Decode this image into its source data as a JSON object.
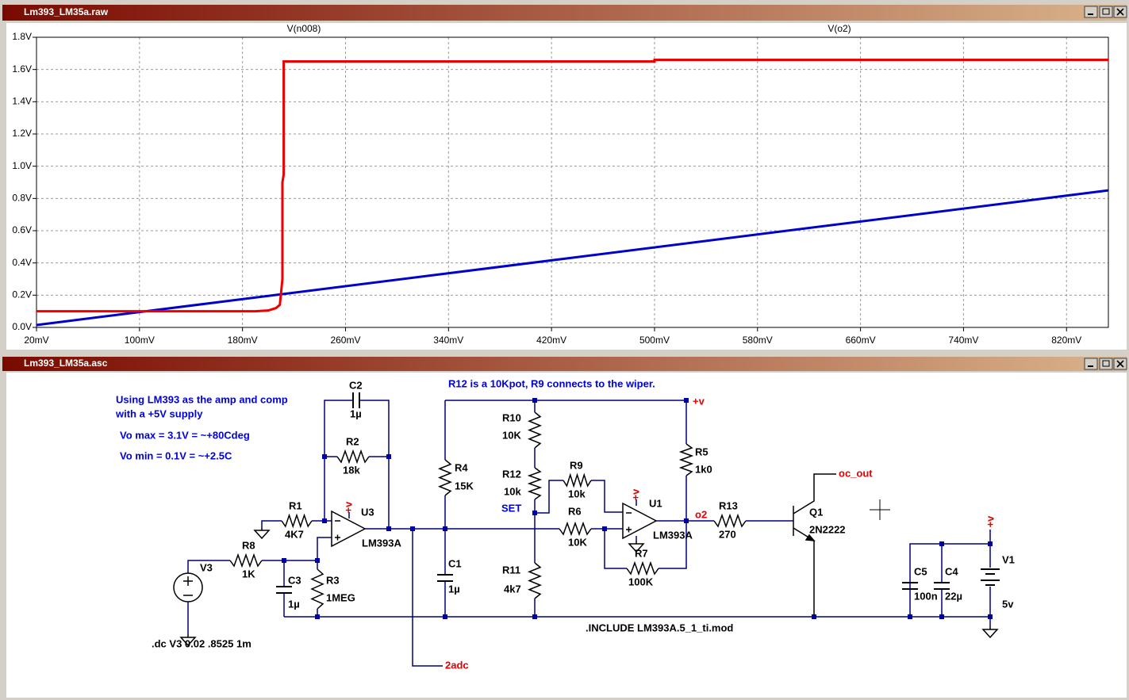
{
  "plot_window": {
    "title": "Lm393_LM35a.raw"
  },
  "chart_data": {
    "type": "line",
    "xlim": [
      20,
      852.5
    ],
    "ylim": [
      0,
      1.8
    ],
    "xticks": [
      {
        "value": 20,
        "label": "20mV"
      },
      {
        "value": 100,
        "label": "100mV"
      },
      {
        "value": 180,
        "label": "180mV"
      },
      {
        "value": 260,
        "label": "260mV"
      },
      {
        "value": 340,
        "label": "340mV"
      },
      {
        "value": 420,
        "label": "420mV"
      },
      {
        "value": 500,
        "label": "500mV"
      },
      {
        "value": 580,
        "label": "580mV"
      },
      {
        "value": 660,
        "label": "660mV"
      },
      {
        "value": 740,
        "label": "740mV"
      },
      {
        "value": 820,
        "label": "820mV"
      }
    ],
    "yticks": [
      {
        "value": 0,
        "label": "0.0V"
      },
      {
        "value": 0.2,
        "label": "0.2V"
      },
      {
        "value": 0.4,
        "label": "0.4V"
      },
      {
        "value": 0.6,
        "label": "0.6V"
      },
      {
        "value": 0.8,
        "label": "0.8V"
      },
      {
        "value": 1,
        "label": "1.0V"
      },
      {
        "value": 1.2,
        "label": "1.2V"
      },
      {
        "value": 1.4,
        "label": "1.4V"
      },
      {
        "value": 1.6,
        "label": "1.6V"
      },
      {
        "value": 1.8,
        "label": "1.8V"
      }
    ],
    "grid": true,
    "series": [
      {
        "name": "V(n008)",
        "color": "#0000cc",
        "x": [
          20,
          852.5
        ],
        "values": [
          0.015,
          0.85
        ]
      },
      {
        "name": "V(o2)",
        "color": "#ee0000",
        "x": [
          20,
          190,
          200,
          206,
          209,
          211,
          211,
          212,
          212,
          500,
          500,
          852.5
        ],
        "values": [
          0.1,
          0.1,
          0.105,
          0.12,
          0.14,
          0.3,
          0.9,
          0.95,
          1.65,
          1.65,
          1.66,
          1.66
        ]
      }
    ]
  },
  "schematic_window": {
    "title": "Lm393_LM35a.asc"
  },
  "schematic": {
    "comments": [
      "Using LM393 as the amp and comp",
      "with a +5V supply",
      "Vo max = 3.1V = ~+80Cdeg",
      "Vo min = 0.1V = ~+2.5C",
      "R12 is a 10Kpot, R9 connects to the wiper.",
      "SET"
    ],
    "components": [
      {
        "ref": "C2",
        "value": "1µ"
      },
      {
        "ref": "R2",
        "value": "18k"
      },
      {
        "ref": "R1",
        "value": "4K7"
      },
      {
        "ref": "R8",
        "value": "1K"
      },
      {
        "ref": "V3"
      },
      {
        "ref": "C3",
        "value": "1µ"
      },
      {
        "ref": "R3",
        "value": "1MEG"
      },
      {
        "ref": "U3",
        "value": "LM393A"
      },
      {
        "ref": "C1",
        "value": "1µ"
      },
      {
        "ref": "R4",
        "value": "15K"
      },
      {
        "ref": "R10",
        "value": "10K"
      },
      {
        "ref": "R12",
        "value": "10k"
      },
      {
        "ref": "R11",
        "value": "4k7"
      },
      {
        "ref": "R9",
        "value": "10k"
      },
      {
        "ref": "R6",
        "value": "10K"
      },
      {
        "ref": "R7",
        "value": "100K"
      },
      {
        "ref": "U1",
        "value": "LM393A"
      },
      {
        "ref": "R5",
        "value": "1k0"
      },
      {
        "ref": "R13",
        "value": "270"
      },
      {
        "ref": "Q1",
        "value": "2N2222"
      },
      {
        "ref": "C5",
        "value": "100n"
      },
      {
        "ref": "C4",
        "value": "22µ"
      },
      {
        "ref": "V1",
        "value": "5v"
      }
    ],
    "net_labels": [
      "+v",
      "+v",
      "+v",
      "+v",
      "o2",
      "oc_out",
      "2adc"
    ],
    "directives": [
      ".dc V3 0.02 .8525 1m",
      ".INCLUDE LM393A.5_1_ti.mod"
    ]
  }
}
